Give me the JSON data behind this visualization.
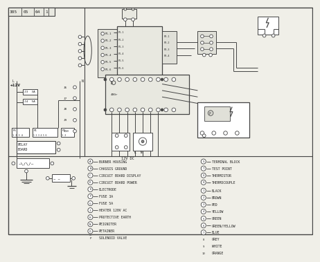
{
  "bg_color": "#f0efe8",
  "border_color": "#666666",
  "line_color": "#444444",
  "text_color": "#222222",
  "title": "385  05  64  |  1",
  "label_12v": "+12V",
  "label_12vdc": "12V DC",
  "legend_left": [
    [
      "A",
      "BURNER HOUSING"
    ],
    [
      "B",
      "CHASSIS GROUND"
    ],
    [
      "C",
      "CIRCUIT BOARD DISPLAY"
    ],
    [
      "D",
      "CIRCUIT BOARD POWER"
    ],
    [
      "E",
      "ELECTRODE"
    ],
    [
      "F",
      "FUSE 3A"
    ],
    [
      "G",
      "FUSE 5A"
    ],
    [
      "J",
      "HEATER 120V AC"
    ],
    [
      "H",
      "PROTECTIVE EARTH"
    ],
    [
      "N",
      "REIGNITER"
    ],
    [
      "O",
      "RETAINER"
    ],
    [
      "P",
      "SOLENOID VALVE"
    ]
  ],
  "legend_right_top": [
    [
      "S",
      "TERMINAL BLOCK"
    ],
    [
      "T",
      "TEST POINT"
    ],
    [
      "U",
      "THERMISTOR"
    ],
    [
      "V",
      "THERMOCOUPLE"
    ]
  ],
  "wire_colors": [
    [
      "1",
      "BLACK"
    ],
    [
      "2",
      "BROWN"
    ],
    [
      "3",
      "RED"
    ],
    [
      "4",
      "YELLOW"
    ],
    [
      "5",
      "GREEN"
    ],
    [
      "6",
      "GREEN/YELLOW"
    ],
    [
      "7",
      "BLUE"
    ],
    [
      "8",
      "GREY"
    ],
    [
      "9",
      "WHITE"
    ],
    [
      "10",
      "ORANGE"
    ]
  ]
}
